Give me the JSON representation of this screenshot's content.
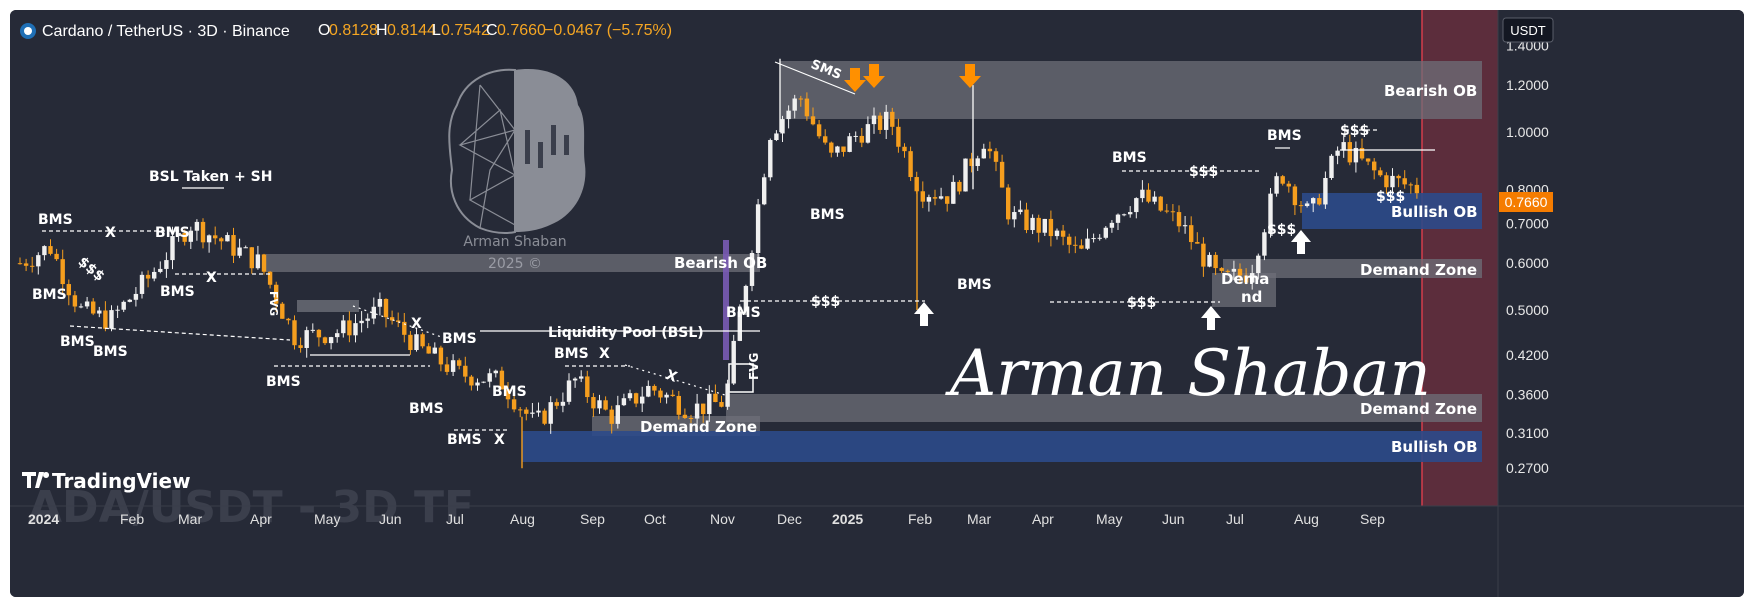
{
  "legend": {
    "symbol": "Cardano / TetherUS · 3D · Binance",
    "open_label": "O",
    "open": "0.8128",
    "high_label": "H",
    "high": "0.8144",
    "low_label": "L",
    "low": "0.7542",
    "close_label": "C",
    "close": "0.7660",
    "change": "−0.0467 (−5.75%)"
  },
  "currency": "USDT",
  "last_price_tag": "0.7660",
  "branding": {
    "tradingview": "TradingView",
    "logo_name": "Arman Shaban",
    "logo_year": "2025 ©",
    "signature": "Arman Shaban",
    "watermark_text": "ADA/USDT - 3D TF"
  },
  "colors": {
    "background": "#262a37",
    "up_candle": "#f0f0f0",
    "down_candle": "#f59e1e",
    "zone_gray": "#6d6f78",
    "zone_blue": "#2c4a8a",
    "future_zone": "#5c2d3c",
    "arrow_orange": "#ff9000",
    "price_tag": "#f57c00"
  },
  "chart_data": {
    "type": "candlestick",
    "scale": "log",
    "price_ticks": [
      "1.4000",
      "1.2000",
      "1.0000",
      "0.8000",
      "0.7000",
      "0.6000",
      "0.5000",
      "0.4200",
      "0.3600",
      "0.3100",
      "0.2700"
    ],
    "time_ticks": [
      "2024",
      "Feb",
      "Mar",
      "Apr",
      "May",
      "Jun",
      "Jul",
      "Aug",
      "Sep",
      "Oct",
      "Nov",
      "Dec",
      "2025",
      "Feb",
      "Mar",
      "Apr",
      "May",
      "Jun",
      "Jul",
      "Aug",
      "Sep"
    ],
    "waypoints": [
      {
        "x": 10,
        "p": 0.6
      },
      {
        "x": 40,
        "p": 0.64
      },
      {
        "x": 70,
        "p": 0.5
      },
      {
        "x": 100,
        "p": 0.48
      },
      {
        "x": 140,
        "p": 0.57
      },
      {
        "x": 180,
        "p": 0.7
      },
      {
        "x": 215,
        "p": 0.65
      },
      {
        "x": 250,
        "p": 0.6
      },
      {
        "x": 285,
        "p": 0.45
      },
      {
        "x": 330,
        "p": 0.46
      },
      {
        "x": 370,
        "p": 0.5
      },
      {
        "x": 410,
        "p": 0.43
      },
      {
        "x": 450,
        "p": 0.39
      },
      {
        "x": 490,
        "p": 0.38
      },
      {
        "x": 525,
        "p": 0.32
      },
      {
        "x": 565,
        "p": 0.38
      },
      {
        "x": 600,
        "p": 0.33
      },
      {
        "x": 640,
        "p": 0.37
      },
      {
        "x": 680,
        "p": 0.34
      },
      {
        "x": 715,
        "p": 0.35
      },
      {
        "x": 735,
        "p": 0.55
      },
      {
        "x": 760,
        "p": 1.0
      },
      {
        "x": 790,
        "p": 1.15
      },
      {
        "x": 820,
        "p": 0.9
      },
      {
        "x": 850,
        "p": 1.0
      },
      {
        "x": 880,
        "p": 1.05
      },
      {
        "x": 910,
        "p": 0.8
      },
      {
        "x": 940,
        "p": 0.78
      },
      {
        "x": 975,
        "p": 0.98
      },
      {
        "x": 1000,
        "p": 0.72
      },
      {
        "x": 1040,
        "p": 0.68
      },
      {
        "x": 1070,
        "p": 0.62
      },
      {
        "x": 1100,
        "p": 0.72
      },
      {
        "x": 1130,
        "p": 0.78
      },
      {
        "x": 1170,
        "p": 0.7
      },
      {
        "x": 1210,
        "p": 0.56
      },
      {
        "x": 1240,
        "p": 0.58
      },
      {
        "x": 1270,
        "p": 0.86
      },
      {
        "x": 1300,
        "p": 0.72
      },
      {
        "x": 1330,
        "p": 0.95
      },
      {
        "x": 1370,
        "p": 0.84
      },
      {
        "x": 1410,
        "p": 0.8
      }
    ],
    "annotations": {
      "bsl_taken": "BSL Taken + SH",
      "bms": "BMS",
      "x_mark": "X",
      "liq_sss": "$$$",
      "sms": "SMS",
      "liquidity_pool": "Liquidity Pool (BSL)",
      "fvg": "FVG",
      "bearish_ob": "Bearish OB",
      "bullish_ob": "Bullish OB",
      "demand_zone": "Demand Zone",
      "demand_split_1": "Dema",
      "demand_split_2": "nd"
    }
  }
}
